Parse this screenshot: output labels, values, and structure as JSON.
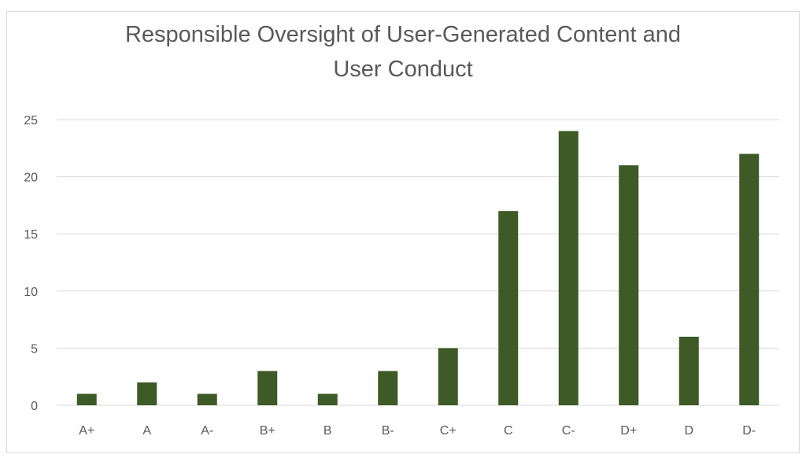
{
  "chart_data": {
    "type": "bar",
    "title": "Responsible Oversight of User-Generated Content and\nUser Conduct",
    "xlabel": "",
    "ylabel": "",
    "categories": [
      "A+",
      "A",
      "A-",
      "B+",
      "B",
      "B-",
      "C+",
      "C",
      "C-",
      "D+",
      "D",
      "D-"
    ],
    "values": [
      1,
      2,
      1,
      3,
      1,
      3,
      5,
      17,
      24,
      21,
      6,
      22
    ],
    "ylim": [
      0,
      25
    ],
    "yticks": [
      0,
      5,
      10,
      15,
      20,
      25
    ],
    "grid": true,
    "legend": "none",
    "bar_color": "#3d5a27",
    "grid_color": "#d9d9d9",
    "text_color": "#595959"
  }
}
